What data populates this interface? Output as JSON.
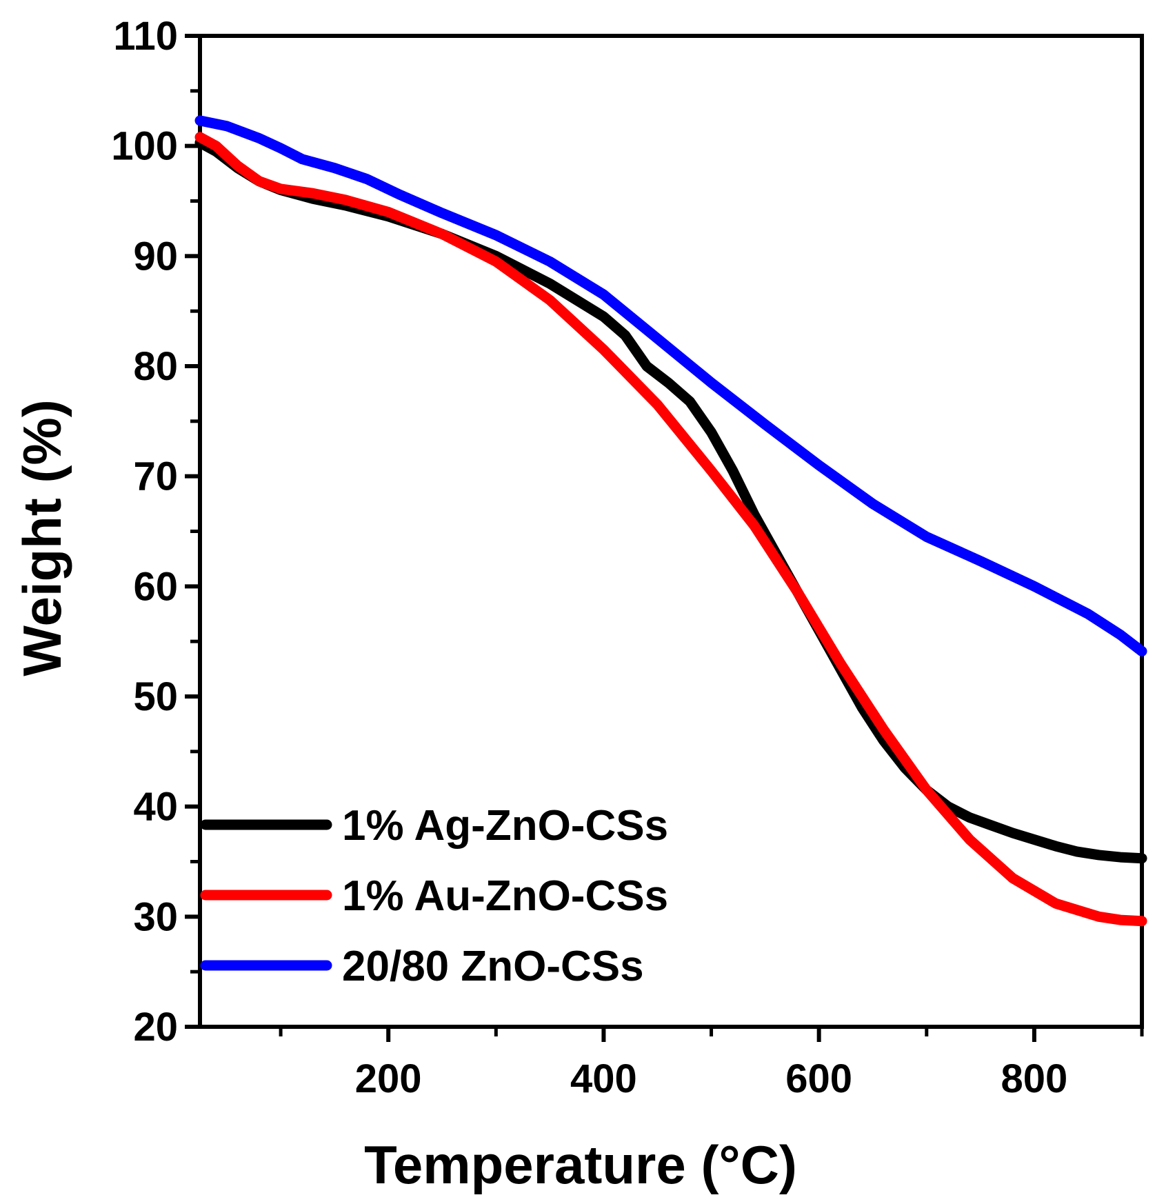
{
  "chart_data": {
    "type": "line",
    "title": "",
    "xlabel": "Temperature (°C)",
    "ylabel": "Weight (%)",
    "xlim": [
      25,
      900
    ],
    "ylim": [
      20,
      110
    ],
    "xticks": [
      200,
      400,
      600,
      800
    ],
    "xminor_ticks": [
      100,
      300,
      500,
      700,
      900
    ],
    "yticks": [
      20,
      30,
      40,
      50,
      60,
      70,
      80,
      90,
      100,
      110
    ],
    "yminor_ticks": [
      25,
      35,
      45,
      55,
      65,
      75,
      85,
      95,
      105
    ],
    "x_tick_labels": [
      "200",
      "400",
      "600",
      "800"
    ],
    "y_tick_labels": [
      "20",
      "30",
      "40",
      "50",
      "60",
      "70",
      "80",
      "90",
      "100",
      "110"
    ],
    "grid": false,
    "legend_position": "bottom-left",
    "series": [
      {
        "name": "1% Ag-ZnO-CSs",
        "color": "#000000",
        "points": [
          [
            25,
            100.3
          ],
          [
            40,
            99.5
          ],
          [
            60,
            98.0
          ],
          [
            80,
            96.8
          ],
          [
            100,
            96.0
          ],
          [
            130,
            95.2
          ],
          [
            160,
            94.6
          ],
          [
            200,
            93.6
          ],
          [
            250,
            92.0
          ],
          [
            300,
            90.0
          ],
          [
            350,
            87.5
          ],
          [
            400,
            84.5
          ],
          [
            420,
            82.8
          ],
          [
            440,
            80.0
          ],
          [
            460,
            78.5
          ],
          [
            480,
            76.8
          ],
          [
            500,
            74.0
          ],
          [
            520,
            70.5
          ],
          [
            540,
            66.5
          ],
          [
            560,
            63.0
          ],
          [
            580,
            59.5
          ],
          [
            600,
            56.0
          ],
          [
            620,
            52.5
          ],
          [
            640,
            49.0
          ],
          [
            660,
            46.0
          ],
          [
            680,
            43.5
          ],
          [
            700,
            41.5
          ],
          [
            720,
            40.0
          ],
          [
            740,
            39.0
          ],
          [
            760,
            38.3
          ],
          [
            780,
            37.6
          ],
          [
            800,
            37.0
          ],
          [
            820,
            36.4
          ],
          [
            840,
            35.9
          ],
          [
            860,
            35.6
          ],
          [
            880,
            35.4
          ],
          [
            900,
            35.3
          ]
        ]
      },
      {
        "name": "1% Au-ZnO-CSs",
        "color": "#ff0000",
        "points": [
          [
            25,
            100.8
          ],
          [
            40,
            100.0
          ],
          [
            60,
            98.2
          ],
          [
            80,
            96.8
          ],
          [
            100,
            96.1
          ],
          [
            130,
            95.7
          ],
          [
            160,
            95.1
          ],
          [
            200,
            94.0
          ],
          [
            250,
            92.0
          ],
          [
            300,
            89.5
          ],
          [
            350,
            86.0
          ],
          [
            400,
            81.5
          ],
          [
            450,
            76.5
          ],
          [
            500,
            70.5
          ],
          [
            540,
            65.5
          ],
          [
            580,
            59.5
          ],
          [
            620,
            53.0
          ],
          [
            660,
            47.0
          ],
          [
            700,
            41.5
          ],
          [
            740,
            37.0
          ],
          [
            780,
            33.5
          ],
          [
            820,
            31.2
          ],
          [
            860,
            30.0
          ],
          [
            880,
            29.7
          ],
          [
            900,
            29.6
          ]
        ]
      },
      {
        "name": "20/80 ZnO-CSs",
        "color": "#0000ff",
        "points": [
          [
            25,
            102.3
          ],
          [
            50,
            101.8
          ],
          [
            80,
            100.7
          ],
          [
            100,
            99.8
          ],
          [
            120,
            98.8
          ],
          [
            150,
            98.0
          ],
          [
            180,
            97.0
          ],
          [
            210,
            95.6
          ],
          [
            250,
            93.9
          ],
          [
            300,
            91.9
          ],
          [
            350,
            89.5
          ],
          [
            400,
            86.5
          ],
          [
            450,
            82.5
          ],
          [
            500,
            78.5
          ],
          [
            550,
            74.7
          ],
          [
            600,
            71.0
          ],
          [
            650,
            67.5
          ],
          [
            700,
            64.5
          ],
          [
            750,
            62.3
          ],
          [
            800,
            60.0
          ],
          [
            850,
            57.5
          ],
          [
            880,
            55.6
          ],
          [
            900,
            54.1
          ]
        ]
      }
    ]
  }
}
